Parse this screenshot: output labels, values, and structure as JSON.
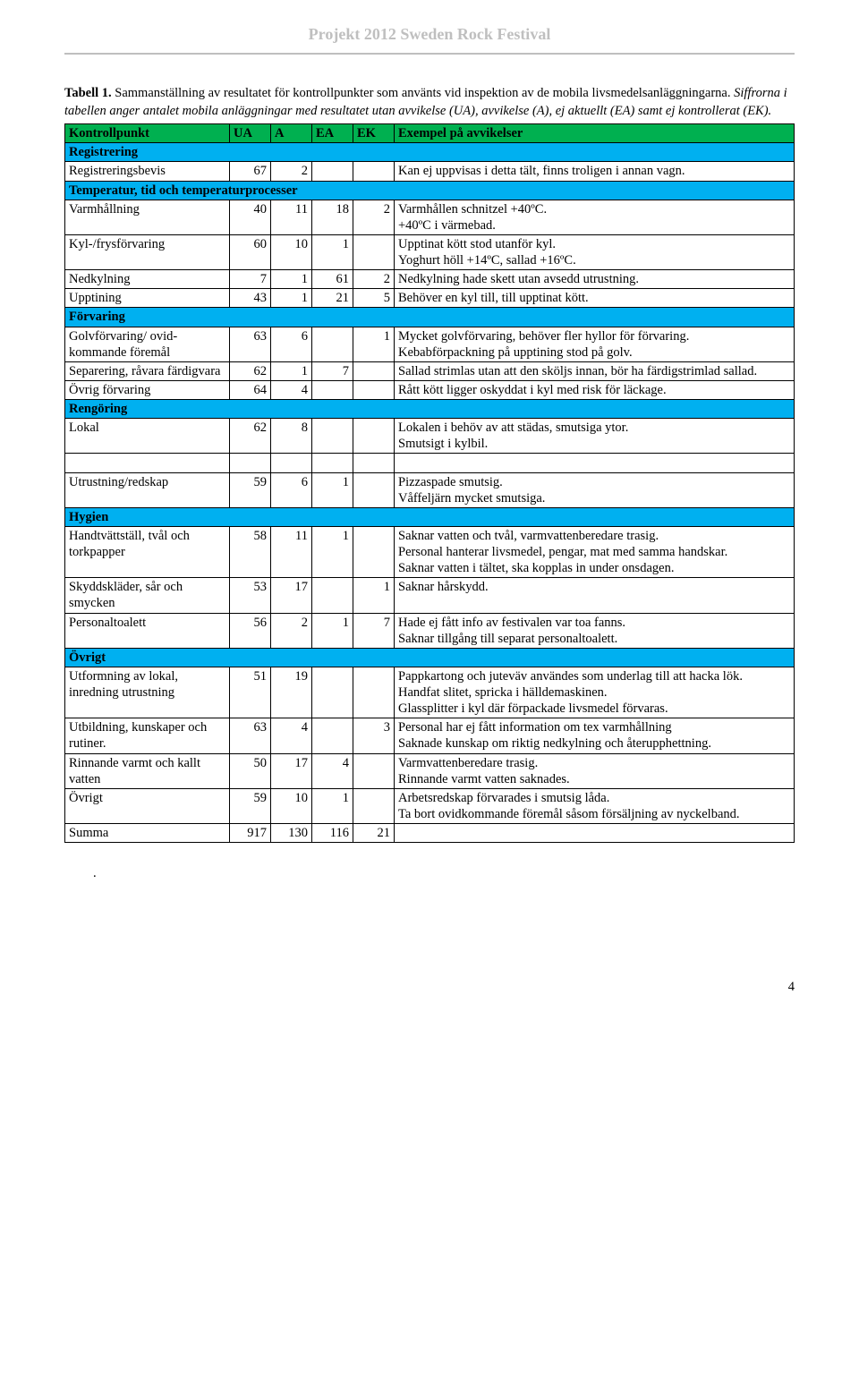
{
  "header": {
    "title": "Projekt 2012 Sweden Rock Festival"
  },
  "caption": {
    "lead": "Tabell 1.",
    "body1": " Sammanställning av resultatet för kontrollpunkter som använts vid inspektion av de mobila livsmedelsanläggningarna. ",
    "body2": "Siffrorna i tabellen anger antalet mobila anläggningar med resultatet utan avvikelse (UA), avvikelse (A), ej aktuellt (EA) samt ej kontrollerat (EK)."
  },
  "table": {
    "header": {
      "c0": "Kontrollpunkt",
      "c1": "UA",
      "c2": "A",
      "c3": "EA",
      "c4": "EK",
      "c5": "Exempel på avvikelser"
    },
    "sections": [
      {
        "title": "Registrering",
        "rows": [
          {
            "c0": "Registreringsbevis",
            "c1": "67",
            "c2": "2",
            "c3": "",
            "c4": "",
            "c5": "Kan ej uppvisas i detta tält, finns troligen i annan vagn."
          }
        ]
      },
      {
        "title": "Temperatur, tid och temperaturprocesser",
        "rows": [
          {
            "c0": "Varmhållning",
            "c1": "40",
            "c2": "11",
            "c3": "18",
            "c4": "2",
            "c5": "Varmhållen schnitzel +40ºC.\n+40ºC i värmebad."
          },
          {
            "c0": "Kyl-/frysförvaring",
            "c1": "60",
            "c2": "10",
            "c3": "1",
            "c4": "",
            "c5": "Upptinat kött stod utanför kyl.\nYoghurt höll +14ºC, sallad +16ºC."
          },
          {
            "c0": "Nedkylning",
            "c1": "7",
            "c2": "1",
            "c3": "61",
            "c4": "2",
            "c5": "Nedkylning hade skett utan avsedd utrustning."
          },
          {
            "c0": "Upptining",
            "c1": "43",
            "c2": "1",
            "c3": "21",
            "c4": "5",
            "c5": "Behöver en kyl till, till upptinat kött."
          }
        ]
      },
      {
        "title": "Förvaring",
        "rows": [
          {
            "c0": "Golvförvaring/ ovid-\nkommande föremål",
            "c1": "63",
            "c2": "6",
            "c3": "",
            "c4": "1",
            "c5": "Mycket golvförvaring, behöver fler hyllor för förvaring.\nKebabförpackning på upptining stod på golv."
          },
          {
            "c0": "Separering, råvara färdigvara",
            "c1": "62",
            "c2": "1",
            "c3": "7",
            "c4": "",
            "c5": "Sallad strimlas utan att den sköljs innan, bör ha färdigstrimlad sallad."
          },
          {
            "c0": "Övrig förvaring",
            "c1": "64",
            "c2": "4",
            "c3": "",
            "c4": "",
            "c5": "Rått kött ligger oskyddat i kyl med risk för läckage."
          }
        ]
      },
      {
        "title": "Rengöring",
        "rows": [
          {
            "c0": "Lokal",
            "c1": "62",
            "c2": "8",
            "c3": "",
            "c4": "",
            "c5": "Lokalen i behöv av att städas, smutsiga ytor.\nSmutsigt i kylbil."
          },
          {
            "gap": true
          },
          {
            "c0": "Utrustning/redskap",
            "c1": "59",
            "c2": "6",
            "c3": "1",
            "c4": "",
            "c5": "Pizzaspade smutsig.\nVåffeljärn mycket smutsiga."
          }
        ]
      },
      {
        "title": "Hygien",
        "rows": [
          {
            "c0": "Handtvättställ, tvål och torkpapper",
            "c1": "58",
            "c2": "11",
            "c3": "1",
            "c4": "",
            "c5": "Saknar vatten och tvål, varmvattenberedare trasig.\nPersonal hanterar livsmedel, pengar, mat med samma handskar.\nSaknar vatten i tältet, ska kopplas in under onsdagen."
          },
          {
            "c0": "Skyddskläder, sår och smycken",
            "c1": "53",
            "c2": "17",
            "c3": "",
            "c4": "1",
            "c5": "Saknar hårskydd."
          },
          {
            "c0": "Personaltoalett",
            "c1": "56",
            "c2": "2",
            "c3": "1",
            "c4": "7",
            "c5": "Hade ej fått info av festivalen var toa fanns.\nSaknar tillgång till separat personaltoalett."
          }
        ]
      },
      {
        "title": "Övrigt",
        "rows": [
          {
            "c0": "Utformning av lokal, inredning utrustning",
            "c1": "51",
            "c2": "19",
            "c3": "",
            "c4": "",
            "c5": "Pappkartong och juteväv användes som underlag till att hacka lök.\nHandfat slitet, spricka i hälldemaskinen.\nGlassplitter i kyl där förpackade livsmedel förvaras."
          },
          {
            "c0": "Utbildning, kunskaper och rutiner.",
            "c1": "63",
            "c2": "4",
            "c3": "",
            "c4": "3",
            "c5": "Personal har ej fått information om tex varmhållning\nSaknade kunskap om riktig nedkylning och återupphettning."
          },
          {
            "c0": "Rinnande varmt och kallt vatten",
            "c1": "50",
            "c2": "17",
            "c3": "4",
            "c4": "",
            "c5": "Varmvattenberedare trasig.\nRinnande varmt vatten saknades."
          },
          {
            "c0": "Övrigt",
            "c1": "59",
            "c2": "10",
            "c3": "1",
            "c4": "",
            "c5": "Arbetsredskap förvarades i smutsig låda.\nTa bort ovidkommande föremål såsom försäljning av nyckelband."
          }
        ]
      }
    ],
    "sum": {
      "c0": "Summa",
      "c1": "917",
      "c2": "130",
      "c3": "116",
      "c4": "21",
      "c5": ""
    }
  },
  "trailing_dot": ".",
  "page_number": "4"
}
